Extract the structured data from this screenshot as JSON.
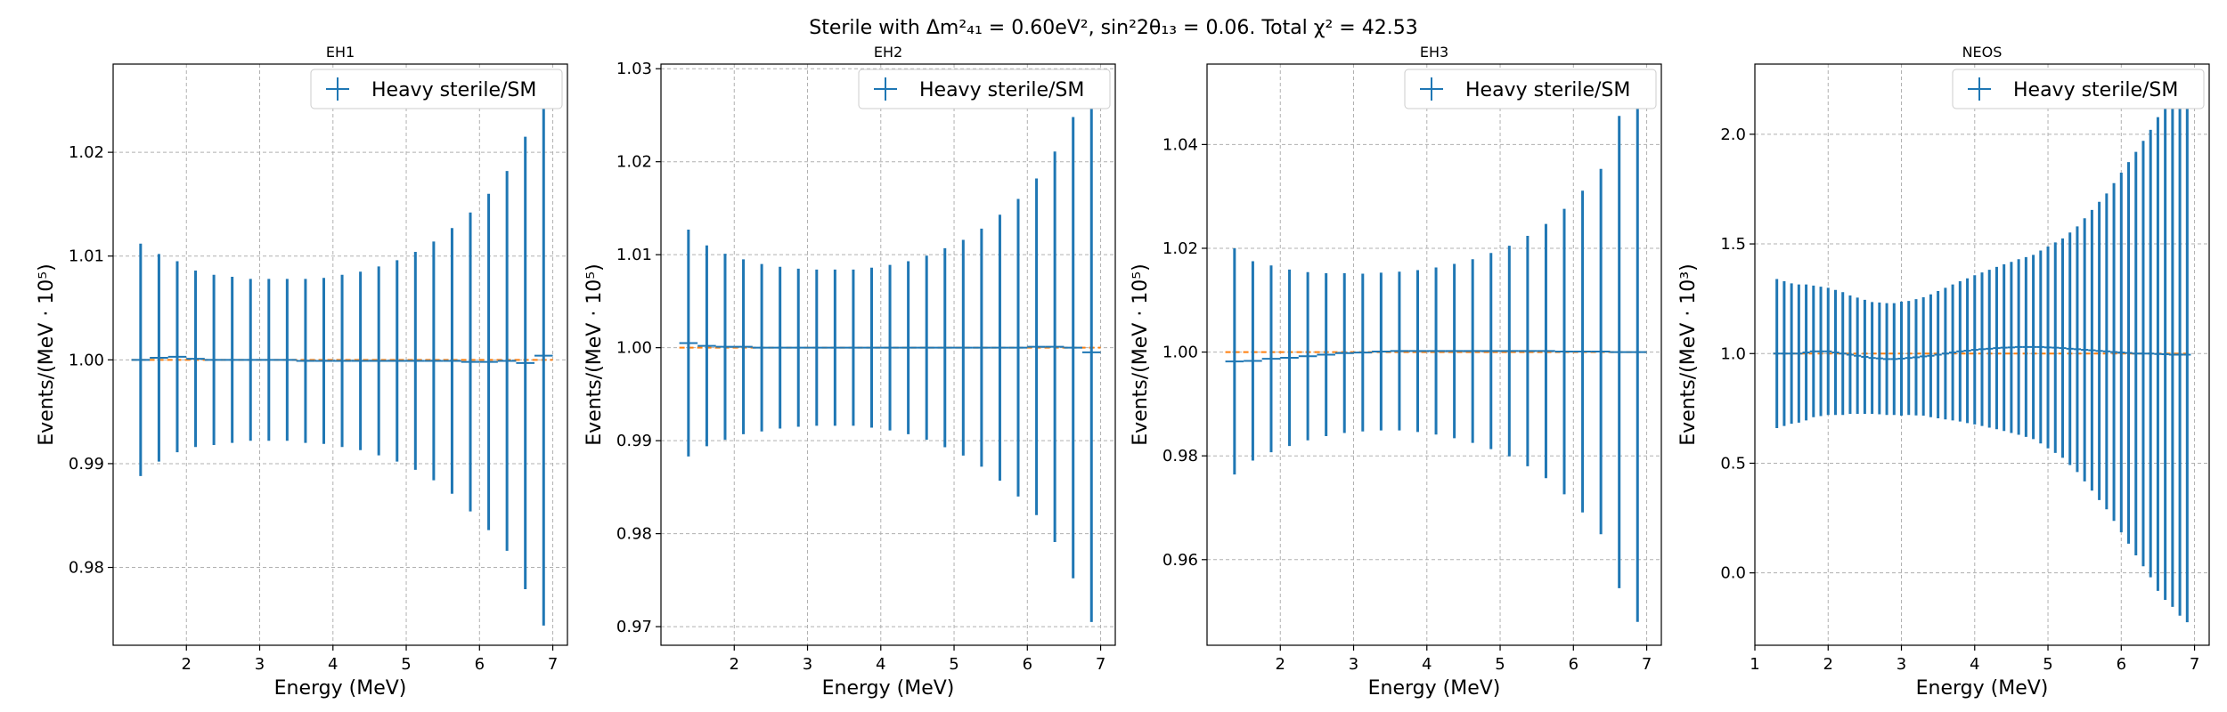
{
  "figure": {
    "title": "Sterile with Δm²₄₁ = 0.60eV², sin²2θ₁₃ = 0.06. Total χ² = 42.53"
  },
  "chart_data": [
    {
      "type": "errorbar",
      "title": "EH1",
      "xlabel": "Energy (MeV)",
      "ylabel": "Events/(MeV · 10⁵)",
      "legend": {
        "label": "Heavy sterile/SM",
        "placement": "top-right"
      },
      "grid": true,
      "xlim": [
        1.0,
        7.2
      ],
      "ylim": [
        0.9725,
        1.0285
      ],
      "xticks": [
        "2",
        "3",
        "4",
        "5",
        "6",
        "7"
      ],
      "yticks": [
        "0.98",
        "0.99",
        "1.00",
        "1.01",
        "1.02"
      ],
      "xtick_values": [
        2,
        3,
        4,
        5,
        6,
        7
      ],
      "ytick_values": [
        0.98,
        0.99,
        1.0,
        1.01,
        1.02
      ],
      "x_halfwidth": 0.125,
      "reference_value": 1.0,
      "points": [
        {
          "x": 1.375,
          "y": 1.0,
          "err": 0.0112
        },
        {
          "x": 1.625,
          "y": 1.0002,
          "err": 0.01
        },
        {
          "x": 1.875,
          "y": 1.0003,
          "err": 0.0092
        },
        {
          "x": 2.125,
          "y": 1.0001,
          "err": 0.0085
        },
        {
          "x": 2.375,
          "y": 1.0,
          "err": 0.0082
        },
        {
          "x": 2.625,
          "y": 1.0,
          "err": 0.008
        },
        {
          "x": 2.875,
          "y": 1.0,
          "err": 0.0078
        },
        {
          "x": 3.125,
          "y": 1.0,
          "err": 0.0078
        },
        {
          "x": 3.375,
          "y": 1.0,
          "err": 0.0078
        },
        {
          "x": 3.625,
          "y": 0.9999,
          "err": 0.0079
        },
        {
          "x": 3.875,
          "y": 0.9999,
          "err": 0.008
        },
        {
          "x": 4.125,
          "y": 0.9999,
          "err": 0.0083
        },
        {
          "x": 4.375,
          "y": 0.9999,
          "err": 0.0086
        },
        {
          "x": 4.625,
          "y": 0.9999,
          "err": 0.0091
        },
        {
          "x": 4.875,
          "y": 0.9999,
          "err": 0.0097
        },
        {
          "x": 5.125,
          "y": 0.9999,
          "err": 0.0105
        },
        {
          "x": 5.375,
          "y": 0.9999,
          "err": 0.0115
        },
        {
          "x": 5.625,
          "y": 0.9999,
          "err": 0.0128
        },
        {
          "x": 5.875,
          "y": 0.9998,
          "err": 0.0144
        },
        {
          "x": 6.125,
          "y": 0.9998,
          "err": 0.0162
        },
        {
          "x": 6.375,
          "y": 0.9999,
          "err": 0.0183
        },
        {
          "x": 6.625,
          "y": 0.9997,
          "err": 0.0218
        },
        {
          "x": 6.875,
          "y": 1.0004,
          "err": 0.026
        }
      ]
    },
    {
      "type": "errorbar",
      "title": "EH2",
      "xlabel": "Energy (MeV)",
      "ylabel": "Events/(MeV · 10⁵)",
      "legend": {
        "label": "Heavy sterile/SM",
        "placement": "top-right"
      },
      "grid": true,
      "xlim": [
        1.0,
        7.2
      ],
      "ylim": [
        0.968,
        1.0305
      ],
      "xticks": [
        "2",
        "3",
        "4",
        "5",
        "6",
        "7"
      ],
      "yticks": [
        "0.97",
        "0.98",
        "0.99",
        "1.00",
        "1.01",
        "1.02",
        "1.03"
      ],
      "xtick_values": [
        2,
        3,
        4,
        5,
        6,
        7
      ],
      "ytick_values": [
        0.97,
        0.98,
        0.99,
        1.0,
        1.01,
        1.02,
        1.03
      ],
      "x_halfwidth": 0.125,
      "reference_value": 1.0,
      "points": [
        {
          "x": 1.375,
          "y": 1.0005,
          "err": 0.0122
        },
        {
          "x": 1.625,
          "y": 1.0002,
          "err": 0.0108
        },
        {
          "x": 1.875,
          "y": 1.0001,
          "err": 0.01
        },
        {
          "x": 2.125,
          "y": 1.0001,
          "err": 0.0094
        },
        {
          "x": 2.375,
          "y": 1.0,
          "err": 0.009
        },
        {
          "x": 2.625,
          "y": 1.0,
          "err": 0.0087
        },
        {
          "x": 2.875,
          "y": 1.0,
          "err": 0.0085
        },
        {
          "x": 3.125,
          "y": 1.0,
          "err": 0.0084
        },
        {
          "x": 3.375,
          "y": 1.0,
          "err": 0.0084
        },
        {
          "x": 3.625,
          "y": 1.0,
          "err": 0.0084
        },
        {
          "x": 3.875,
          "y": 1.0,
          "err": 0.0086
        },
        {
          "x": 4.125,
          "y": 1.0,
          "err": 0.0089
        },
        {
          "x": 4.375,
          "y": 1.0,
          "err": 0.0093
        },
        {
          "x": 4.625,
          "y": 1.0,
          "err": 0.0099
        },
        {
          "x": 4.875,
          "y": 1.0,
          "err": 0.0107
        },
        {
          "x": 5.125,
          "y": 1.0,
          "err": 0.0116
        },
        {
          "x": 5.375,
          "y": 1.0,
          "err": 0.0128
        },
        {
          "x": 5.625,
          "y": 1.0,
          "err": 0.0143
        },
        {
          "x": 5.875,
          "y": 1.0,
          "err": 0.016
        },
        {
          "x": 6.125,
          "y": 1.0001,
          "err": 0.0181
        },
        {
          "x": 6.375,
          "y": 1.0001,
          "err": 0.021
        },
        {
          "x": 6.625,
          "y": 1.0,
          "err": 0.0248
        },
        {
          "x": 6.875,
          "y": 0.9995,
          "err": 0.029
        }
      ]
    },
    {
      "type": "errorbar",
      "title": "EH3",
      "xlabel": "Energy (MeV)",
      "ylabel": "Events/(MeV · 10⁵)",
      "legend": {
        "label": "Heavy sterile/SM",
        "placement": "top-right"
      },
      "grid": true,
      "xlim": [
        1.0,
        7.2
      ],
      "ylim": [
        0.9435,
        1.0555
      ],
      "xticks": [
        "2",
        "3",
        "4",
        "5",
        "6",
        "7"
      ],
      "yticks": [
        "0.96",
        "0.98",
        "1.00",
        "1.02",
        "1.04"
      ],
      "xtick_values": [
        2,
        3,
        4,
        5,
        6,
        7
      ],
      "ytick_values": [
        0.96,
        0.98,
        1.0,
        1.02,
        1.04
      ],
      "x_halfwidth": 0.125,
      "reference_value": 1.0,
      "points": [
        {
          "x": 1.375,
          "y": 0.9982,
          "err": 0.0218
        },
        {
          "x": 1.625,
          "y": 0.9983,
          "err": 0.0192
        },
        {
          "x": 1.875,
          "y": 0.9987,
          "err": 0.018
        },
        {
          "x": 2.125,
          "y": 0.9989,
          "err": 0.017
        },
        {
          "x": 2.375,
          "y": 0.9992,
          "err": 0.0162
        },
        {
          "x": 2.625,
          "y": 0.9995,
          "err": 0.0157
        },
        {
          "x": 2.875,
          "y": 0.9998,
          "err": 0.0154
        },
        {
          "x": 3.125,
          "y": 0.9999,
          "err": 0.0152
        },
        {
          "x": 3.375,
          "y": 1.0001,
          "err": 0.0152
        },
        {
          "x": 3.625,
          "y": 1.0002,
          "err": 0.0153
        },
        {
          "x": 3.875,
          "y": 1.0002,
          "err": 0.0156
        },
        {
          "x": 4.125,
          "y": 1.0002,
          "err": 0.0161
        },
        {
          "x": 4.375,
          "y": 1.0002,
          "err": 0.0168
        },
        {
          "x": 4.625,
          "y": 1.0002,
          "err": 0.0177
        },
        {
          "x": 4.875,
          "y": 1.0002,
          "err": 0.0189
        },
        {
          "x": 5.125,
          "y": 1.0002,
          "err": 0.0203
        },
        {
          "x": 5.375,
          "y": 1.0002,
          "err": 0.0222
        },
        {
          "x": 5.625,
          "y": 1.0002,
          "err": 0.0245
        },
        {
          "x": 5.875,
          "y": 1.0001,
          "err": 0.0275
        },
        {
          "x": 6.125,
          "y": 1.0001,
          "err": 0.031
        },
        {
          "x": 6.375,
          "y": 1.0001,
          "err": 0.0352
        },
        {
          "x": 6.625,
          "y": 1.0,
          "err": 0.0455
        },
        {
          "x": 6.875,
          "y": 1.0,
          "err": 0.052
        }
      ]
    },
    {
      "type": "errorbar",
      "title": "NEOS",
      "xlabel": "Energy (MeV)",
      "ylabel": "Events/(MeV · 10³)",
      "legend": {
        "label": "Heavy sterile/SM",
        "placement": "top-right"
      },
      "grid": true,
      "xlim": [
        1.0,
        7.2
      ],
      "ylim": [
        -0.33,
        2.32
      ],
      "xticks": [
        "1",
        "2",
        "3",
        "4",
        "5",
        "6",
        "7"
      ],
      "yticks": [
        "0.0",
        "0.5",
        "1.0",
        "1.5",
        "2.0"
      ],
      "xtick_values": [
        1,
        2,
        3,
        4,
        5,
        6,
        7
      ],
      "ytick_values": [
        0.0,
        0.5,
        1.0,
        1.5,
        2.0
      ],
      "x_halfwidth": 0.05,
      "reference_value": 1.0,
      "points": [
        {
          "x": 1.3,
          "y": 1.0,
          "err": 0.34
        },
        {
          "x": 1.4,
          "y": 1.0,
          "err": 0.33
        },
        {
          "x": 1.5,
          "y": 1.0,
          "err": 0.32
        },
        {
          "x": 1.6,
          "y": 1.0,
          "err": 0.315
        },
        {
          "x": 1.7,
          "y": 1.005,
          "err": 0.31
        },
        {
          "x": 1.8,
          "y": 1.01,
          "err": 0.3
        },
        {
          "x": 1.9,
          "y": 1.01,
          "err": 0.295
        },
        {
          "x": 2.0,
          "y": 1.01,
          "err": 0.29
        },
        {
          "x": 2.1,
          "y": 1.005,
          "err": 0.285
        },
        {
          "x": 2.2,
          "y": 1.0,
          "err": 0.28
        },
        {
          "x": 2.3,
          "y": 0.995,
          "err": 0.27
        },
        {
          "x": 2.4,
          "y": 0.99,
          "err": 0.265
        },
        {
          "x": 2.5,
          "y": 0.985,
          "err": 0.26
        },
        {
          "x": 2.6,
          "y": 0.98,
          "err": 0.255
        },
        {
          "x": 2.7,
          "y": 0.978,
          "err": 0.255
        },
        {
          "x": 2.8,
          "y": 0.975,
          "err": 0.255
        },
        {
          "x": 2.9,
          "y": 0.975,
          "err": 0.255
        },
        {
          "x": 3.0,
          "y": 0.977,
          "err": 0.26
        },
        {
          "x": 3.1,
          "y": 0.98,
          "err": 0.26
        },
        {
          "x": 3.2,
          "y": 0.983,
          "err": 0.265
        },
        {
          "x": 3.3,
          "y": 0.987,
          "err": 0.27
        },
        {
          "x": 3.4,
          "y": 0.99,
          "err": 0.28
        },
        {
          "x": 3.5,
          "y": 0.995,
          "err": 0.29
        },
        {
          "x": 3.6,
          "y": 1.0,
          "err": 0.3
        },
        {
          "x": 3.7,
          "y": 1.005,
          "err": 0.31
        },
        {
          "x": 3.8,
          "y": 1.01,
          "err": 0.32
        },
        {
          "x": 3.9,
          "y": 1.013,
          "err": 0.33
        },
        {
          "x": 4.0,
          "y": 1.017,
          "err": 0.34
        },
        {
          "x": 4.1,
          "y": 1.02,
          "err": 0.35
        },
        {
          "x": 4.2,
          "y": 1.022,
          "err": 0.36
        },
        {
          "x": 4.3,
          "y": 1.025,
          "err": 0.37
        },
        {
          "x": 4.4,
          "y": 1.027,
          "err": 0.38
        },
        {
          "x": 4.5,
          "y": 1.028,
          "err": 0.39
        },
        {
          "x": 4.6,
          "y": 1.03,
          "err": 0.4
        },
        {
          "x": 4.7,
          "y": 1.03,
          "err": 0.41
        },
        {
          "x": 4.8,
          "y": 1.03,
          "err": 0.42
        },
        {
          "x": 4.9,
          "y": 1.03,
          "err": 0.44
        },
        {
          "x": 5.0,
          "y": 1.028,
          "err": 0.46
        },
        {
          "x": 5.1,
          "y": 1.027,
          "err": 0.48
        },
        {
          "x": 5.2,
          "y": 1.025,
          "err": 0.5
        },
        {
          "x": 5.3,
          "y": 1.022,
          "err": 0.53
        },
        {
          "x": 5.4,
          "y": 1.02,
          "err": 0.56
        },
        {
          "x": 5.5,
          "y": 1.017,
          "err": 0.6
        },
        {
          "x": 5.6,
          "y": 1.015,
          "err": 0.64
        },
        {
          "x": 5.7,
          "y": 1.012,
          "err": 0.68
        },
        {
          "x": 5.8,
          "y": 1.01,
          "err": 0.72
        },
        {
          "x": 5.9,
          "y": 1.007,
          "err": 0.77
        },
        {
          "x": 6.0,
          "y": 1.005,
          "err": 0.82
        },
        {
          "x": 6.1,
          "y": 1.003,
          "err": 0.87
        },
        {
          "x": 6.2,
          "y": 1.0,
          "err": 0.92
        },
        {
          "x": 6.3,
          "y": 1.0,
          "err": 0.97
        },
        {
          "x": 6.4,
          "y": 1.0,
          "err": 1.02
        },
        {
          "x": 6.5,
          "y": 0.998,
          "err": 1.08
        },
        {
          "x": 6.6,
          "y": 0.997,
          "err": 1.12
        },
        {
          "x": 6.7,
          "y": 0.995,
          "err": 1.15
        },
        {
          "x": 6.8,
          "y": 0.995,
          "err": 1.19
        },
        {
          "x": 6.9,
          "y": 0.995,
          "err": 1.22
        }
      ]
    }
  ]
}
